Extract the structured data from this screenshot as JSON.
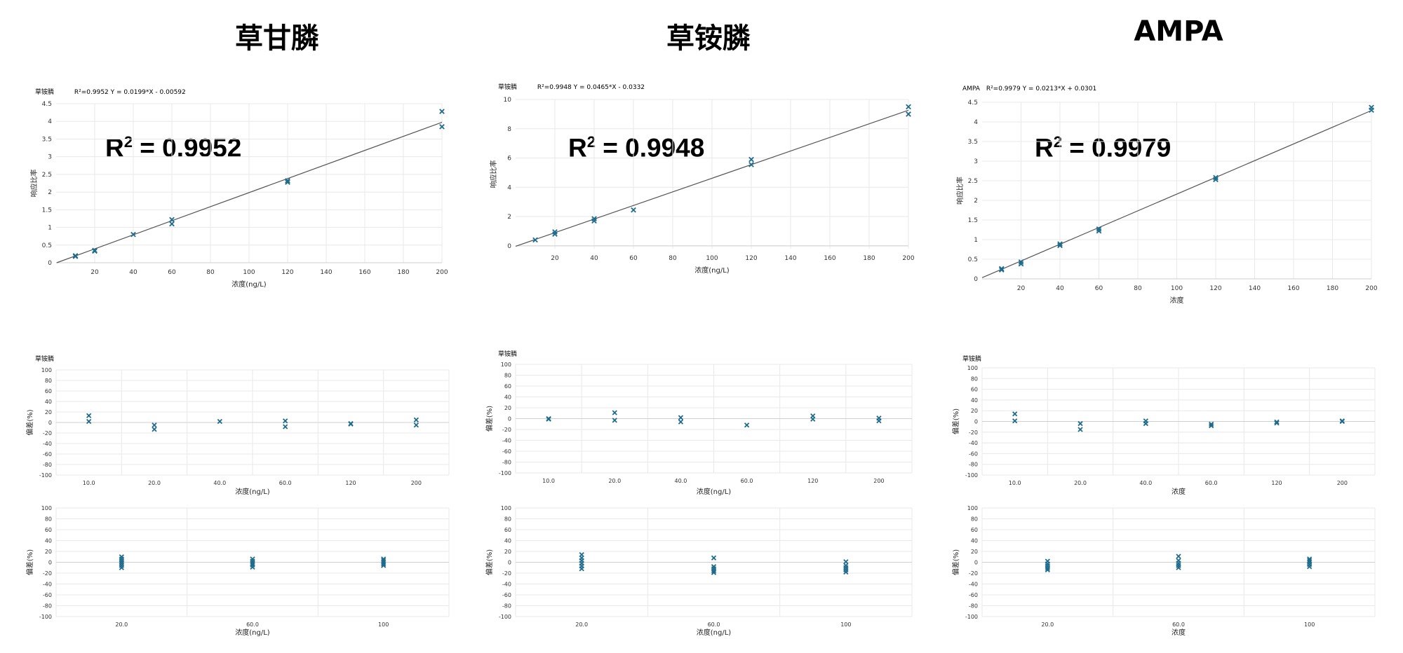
{
  "titles": [
    "草甘膦",
    "草铵膦",
    "AMPA"
  ],
  "colors": {
    "marker": "#1f6b8c",
    "grid": "#e8e8e8",
    "line": "#555555",
    "axis": "#cfcfcf"
  },
  "charts": [
    {
      "calibration": {
        "header_name": "草铵膦",
        "header_eq": "R²=0.9952   Y = 0.0199*X - 0.00592",
        "big_r2_prefix": "R",
        "big_r2_sup": "2",
        "big_r2_value": " = 0.9952",
        "xlabel": "浓度(ng/L)",
        "ylabel": "响应比率",
        "xticks": [
          20,
          40,
          60,
          80,
          100,
          120,
          140,
          160,
          180,
          200
        ],
        "yticks": [
          "0",
          "0.5",
          "1",
          "1.5",
          "2",
          "2.5",
          "3",
          "3.5",
          "4",
          "4.5"
        ]
      },
      "residual1": {
        "header": "草铵膦",
        "xlabel": "浓度(ng/L)",
        "ylabel": "偏差(%)",
        "xticks": [
          "10.0",
          "20.0",
          "40.0",
          "60.0",
          "120",
          "200"
        ],
        "yticks": [
          "100",
          "80",
          "60",
          "40",
          "20",
          "0",
          "-20",
          "-40",
          "-60",
          "-80",
          "-100"
        ]
      },
      "residual2": {
        "xlabel": "浓度(ng/L)",
        "ylabel": "偏差(%)",
        "xticks": [
          "20.0",
          "60.0",
          "100"
        ],
        "yticks": [
          "100",
          "80",
          "60",
          "40",
          "20",
          "0",
          "-20",
          "-40",
          "-60",
          "-80",
          "-100"
        ]
      }
    },
    {
      "calibration": {
        "header_name": "草铵膦",
        "header_eq": "R²=0.9948   Y = 0.0465*X - 0.0332",
        "big_r2_prefix": "R",
        "big_r2_sup": "2",
        "big_r2_value": " = 0.9948",
        "xlabel": "浓度(ng/L)",
        "ylabel": "响应比率",
        "xticks": [
          20,
          40,
          60,
          80,
          100,
          120,
          140,
          160,
          180,
          200
        ],
        "yticks": [
          "0",
          "2",
          "4",
          "6",
          "8",
          "10"
        ]
      },
      "residual1": {
        "header": "草铵膦",
        "xlabel": "浓度(ng/L)",
        "ylabel": "偏差(%)",
        "xticks": [
          "10.0",
          "20.0",
          "40.0",
          "60.0",
          "120",
          "200"
        ],
        "yticks": [
          "100",
          "80",
          "60",
          "40",
          "20",
          "0",
          "-20",
          "-40",
          "-60",
          "-80",
          "-100"
        ]
      },
      "residual2": {
        "xlabel": "浓度(ng/L)",
        "ylabel": "偏差(%)",
        "xticks": [
          "20.0",
          "60.0",
          "100"
        ],
        "yticks": [
          "100",
          "80",
          "60",
          "40",
          "20",
          "0",
          "-20",
          "-40",
          "-60",
          "-80",
          "-100"
        ]
      }
    },
    {
      "calibration": {
        "header_name": "AMPA",
        "header_eq": "R²=0.9979   Y = 0.0213*X + 0.0301",
        "big_r2_prefix": "R",
        "big_r2_sup": "2",
        "big_r2_value": " = 0.9979",
        "xlabel": "浓度",
        "ylabel": "响应比率",
        "xticks": [
          20,
          40,
          60,
          80,
          100,
          120,
          140,
          160,
          180,
          200
        ],
        "yticks": [
          "0",
          "0.5",
          "1",
          "1.5",
          "2",
          "2.5",
          "3",
          "3.5",
          "4",
          "4.5"
        ]
      },
      "residual1": {
        "header": "草铵膦",
        "xlabel": "浓度",
        "ylabel": "偏差(%)",
        "xticks": [
          "10.0",
          "20.0",
          "40.0",
          "60.0",
          "120",
          "200"
        ],
        "yticks": [
          "100",
          "80",
          "60",
          "40",
          "20",
          "0",
          "-20",
          "-40",
          "-60",
          "-80",
          "-100"
        ]
      },
      "residual2": {
        "xlabel": "浓度",
        "ylabel": "偏差(%)",
        "xticks": [
          "20.0",
          "60.0",
          "100"
        ],
        "yticks": [
          "100",
          "80",
          "60",
          "40",
          "20",
          "0",
          "-20",
          "-40",
          "-60",
          "-80",
          "-100"
        ]
      }
    }
  ],
  "chart_data": [
    {
      "type": "scatter",
      "title": "草铵膦",
      "xlabel": "浓度(ng/L)",
      "ylabel": "响应比率",
      "xlim": [
        0,
        200
      ],
      "ylim": [
        0,
        4.5
      ],
      "fit": {
        "slope": 0.0199,
        "intercept": -0.00592,
        "r2": 0.9952
      },
      "x": [
        10,
        10,
        20,
        20,
        40,
        60,
        60,
        120,
        120,
        200,
        200
      ],
      "y": [
        0.2,
        0.18,
        0.35,
        0.33,
        0.8,
        1.22,
        1.1,
        2.32,
        2.28,
        4.28,
        3.85
      ]
    },
    {
      "type": "scatter",
      "title": "草铵膦",
      "xlabel": "浓度(ng/L)",
      "ylabel": "响应比率",
      "xlim": [
        0,
        200
      ],
      "ylim": [
        -0.2,
        10
      ],
      "fit": {
        "slope": 0.0465,
        "intercept": -0.0332,
        "r2": 0.9948
      },
      "x": [
        10,
        20,
        20,
        40,
        40,
        60,
        120,
        120,
        200,
        200
      ],
      "y": [
        0.4,
        0.95,
        0.8,
        1.85,
        1.7,
        2.45,
        5.9,
        5.55,
        9.5,
        9.0
      ]
    },
    {
      "type": "scatter",
      "title": "AMPA",
      "xlabel": "浓度",
      "ylabel": "响应比率",
      "xlim": [
        0,
        200
      ],
      "ylim": [
        0,
        4.5
      ],
      "fit": {
        "slope": 0.0213,
        "intercept": 0.0301,
        "r2": 0.9979
      },
      "x": [
        10,
        10,
        20,
        20,
        40,
        40,
        60,
        60,
        120,
        120,
        200,
        200
      ],
      "y": [
        0.26,
        0.23,
        0.43,
        0.38,
        0.89,
        0.85,
        1.27,
        1.22,
        2.58,
        2.53,
        4.37,
        4.3
      ]
    },
    {
      "type": "scatter",
      "title": "草铵膦",
      "xlabel": "浓度(ng/L)",
      "ylabel": "偏差(%)",
      "categories": [
        "10.0",
        "20.0",
        "40.0",
        "60.0",
        "120",
        "200"
      ],
      "ylim": [
        -100,
        100
      ],
      "points": [
        [
          0,
          13
        ],
        [
          0,
          2
        ],
        [
          1,
          -5
        ],
        [
          1,
          -13
        ],
        [
          2,
          2
        ],
        [
          3,
          3
        ],
        [
          3,
          -8
        ],
        [
          4,
          -3
        ],
        [
          4,
          -2
        ],
        [
          5,
          5
        ],
        [
          5,
          -5
        ]
      ]
    },
    {
      "type": "scatter",
      "title": "草铵膦",
      "xlabel": "浓度(ng/L)",
      "ylabel": "偏差(%)",
      "categories": [
        "10.0",
        "20.0",
        "40.0",
        "60.0",
        "120",
        "200"
      ],
      "ylim": [
        -100,
        100
      ],
      "points": [
        [
          0,
          0
        ],
        [
          0,
          -1
        ],
        [
          1,
          11
        ],
        [
          1,
          -3
        ],
        [
          2,
          2
        ],
        [
          2,
          -6
        ],
        [
          3,
          -12
        ],
        [
          4,
          5
        ],
        [
          4,
          -1
        ],
        [
          5,
          1
        ],
        [
          5,
          -4
        ]
      ]
    },
    {
      "type": "scatter",
      "title": "草铵膦",
      "xlabel": "浓度",
      "ylabel": "偏差(%)",
      "categories": [
        "10.0",
        "20.0",
        "40.0",
        "60.0",
        "120",
        "200"
      ],
      "ylim": [
        -100,
        100
      ],
      "points": [
        [
          0,
          14
        ],
        [
          0,
          1
        ],
        [
          1,
          -4
        ],
        [
          1,
          -15
        ],
        [
          2,
          1
        ],
        [
          2,
          -4
        ],
        [
          3,
          -5
        ],
        [
          3,
          -8
        ],
        [
          4,
          -1
        ],
        [
          4,
          -3
        ],
        [
          5,
          1
        ],
        [
          5,
          0
        ]
      ]
    },
    {
      "type": "scatter",
      "xlabel": "浓度(ng/L)",
      "ylabel": "偏差(%)",
      "categories": [
        "20.0",
        "60.0",
        "100"
      ],
      "ylim": [
        -100,
        100
      ],
      "points": [
        [
          0,
          10
        ],
        [
          0,
          6
        ],
        [
          0,
          2
        ],
        [
          0,
          -2
        ],
        [
          0,
          -6
        ],
        [
          0,
          -10
        ],
        [
          1,
          6
        ],
        [
          1,
          2
        ],
        [
          1,
          -2
        ],
        [
          1,
          -5
        ],
        [
          1,
          -9
        ],
        [
          2,
          6
        ],
        [
          2,
          3
        ],
        [
          2,
          0
        ],
        [
          2,
          -3
        ],
        [
          2,
          -6
        ]
      ]
    },
    {
      "type": "scatter",
      "xlabel": "浓度(ng/L)",
      "ylabel": "偏差(%)",
      "categories": [
        "20.0",
        "60.0",
        "100"
      ],
      "ylim": [
        -100,
        100
      ],
      "points": [
        [
          0,
          14
        ],
        [
          0,
          8
        ],
        [
          0,
          3
        ],
        [
          0,
          -2
        ],
        [
          0,
          -7
        ],
        [
          0,
          -12
        ],
        [
          1,
          8
        ],
        [
          1,
          -8
        ],
        [
          1,
          -12
        ],
        [
          1,
          -16
        ],
        [
          1,
          -19
        ],
        [
          2,
          1
        ],
        [
          2,
          -6
        ],
        [
          2,
          -10
        ],
        [
          2,
          -14
        ],
        [
          2,
          -18
        ]
      ]
    },
    {
      "type": "scatter",
      "xlabel": "浓度",
      "ylabel": "偏差(%)",
      "categories": [
        "20.0",
        "60.0",
        "100"
      ],
      "ylim": [
        -100,
        100
      ],
      "points": [
        [
          0,
          2
        ],
        [
          0,
          -3
        ],
        [
          0,
          -7
        ],
        [
          0,
          -11
        ],
        [
          0,
          -14
        ],
        [
          1,
          11
        ],
        [
          1,
          3
        ],
        [
          1,
          -2
        ],
        [
          1,
          -6
        ],
        [
          1,
          -10
        ],
        [
          2,
          6
        ],
        [
          2,
          3
        ],
        [
          2,
          0
        ],
        [
          2,
          -4
        ],
        [
          2,
          -8
        ]
      ]
    }
  ]
}
